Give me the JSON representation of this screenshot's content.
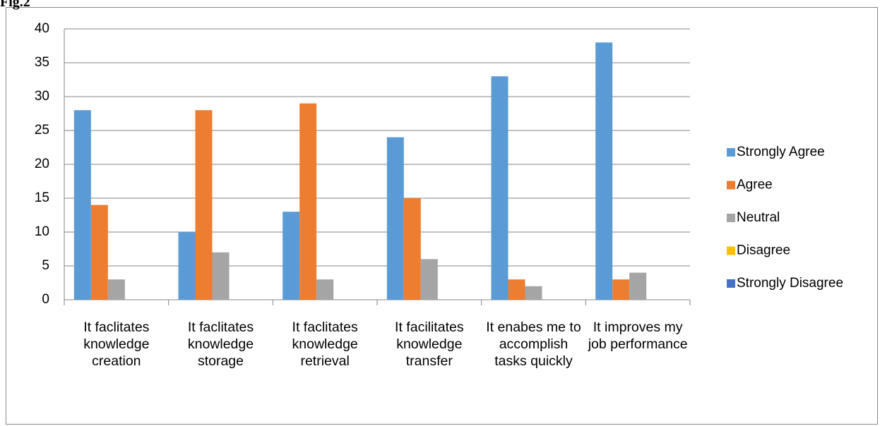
{
  "caption": "Fig.2",
  "chart_data": {
    "type": "bar",
    "categories": [
      "It faclitates knowledge creation",
      "It faclitates knowledge storage",
      "It faclitates knowledge retrieval",
      "It facilitates knowledge transfer",
      "It enabes me to accomplish tasks quickly",
      "It improves my job performance"
    ],
    "series": [
      {
        "name": "Strongly Agree",
        "color": "#5b9bd5",
        "values": [
          28,
          10,
          13,
          24,
          33,
          38
        ]
      },
      {
        "name": "Agree",
        "color": "#ed7d31",
        "values": [
          14,
          28,
          29,
          15,
          3,
          3
        ]
      },
      {
        "name": "Neutral",
        "color": "#a5a5a5",
        "values": [
          3,
          7,
          3,
          6,
          2,
          4
        ]
      },
      {
        "name": "Disagree",
        "color": "#ffc000",
        "values": [
          0,
          0,
          0,
          0,
          0,
          0
        ]
      },
      {
        "name": "Strongly Disagree",
        "color": "#4472c4",
        "values": [
          0,
          0,
          0,
          0,
          0,
          0
        ]
      }
    ],
    "ylim": [
      0,
      40
    ],
    "yticks": [
      0,
      5,
      10,
      15,
      20,
      25,
      30,
      35,
      40
    ],
    "grid": true,
    "legend": "right"
  }
}
